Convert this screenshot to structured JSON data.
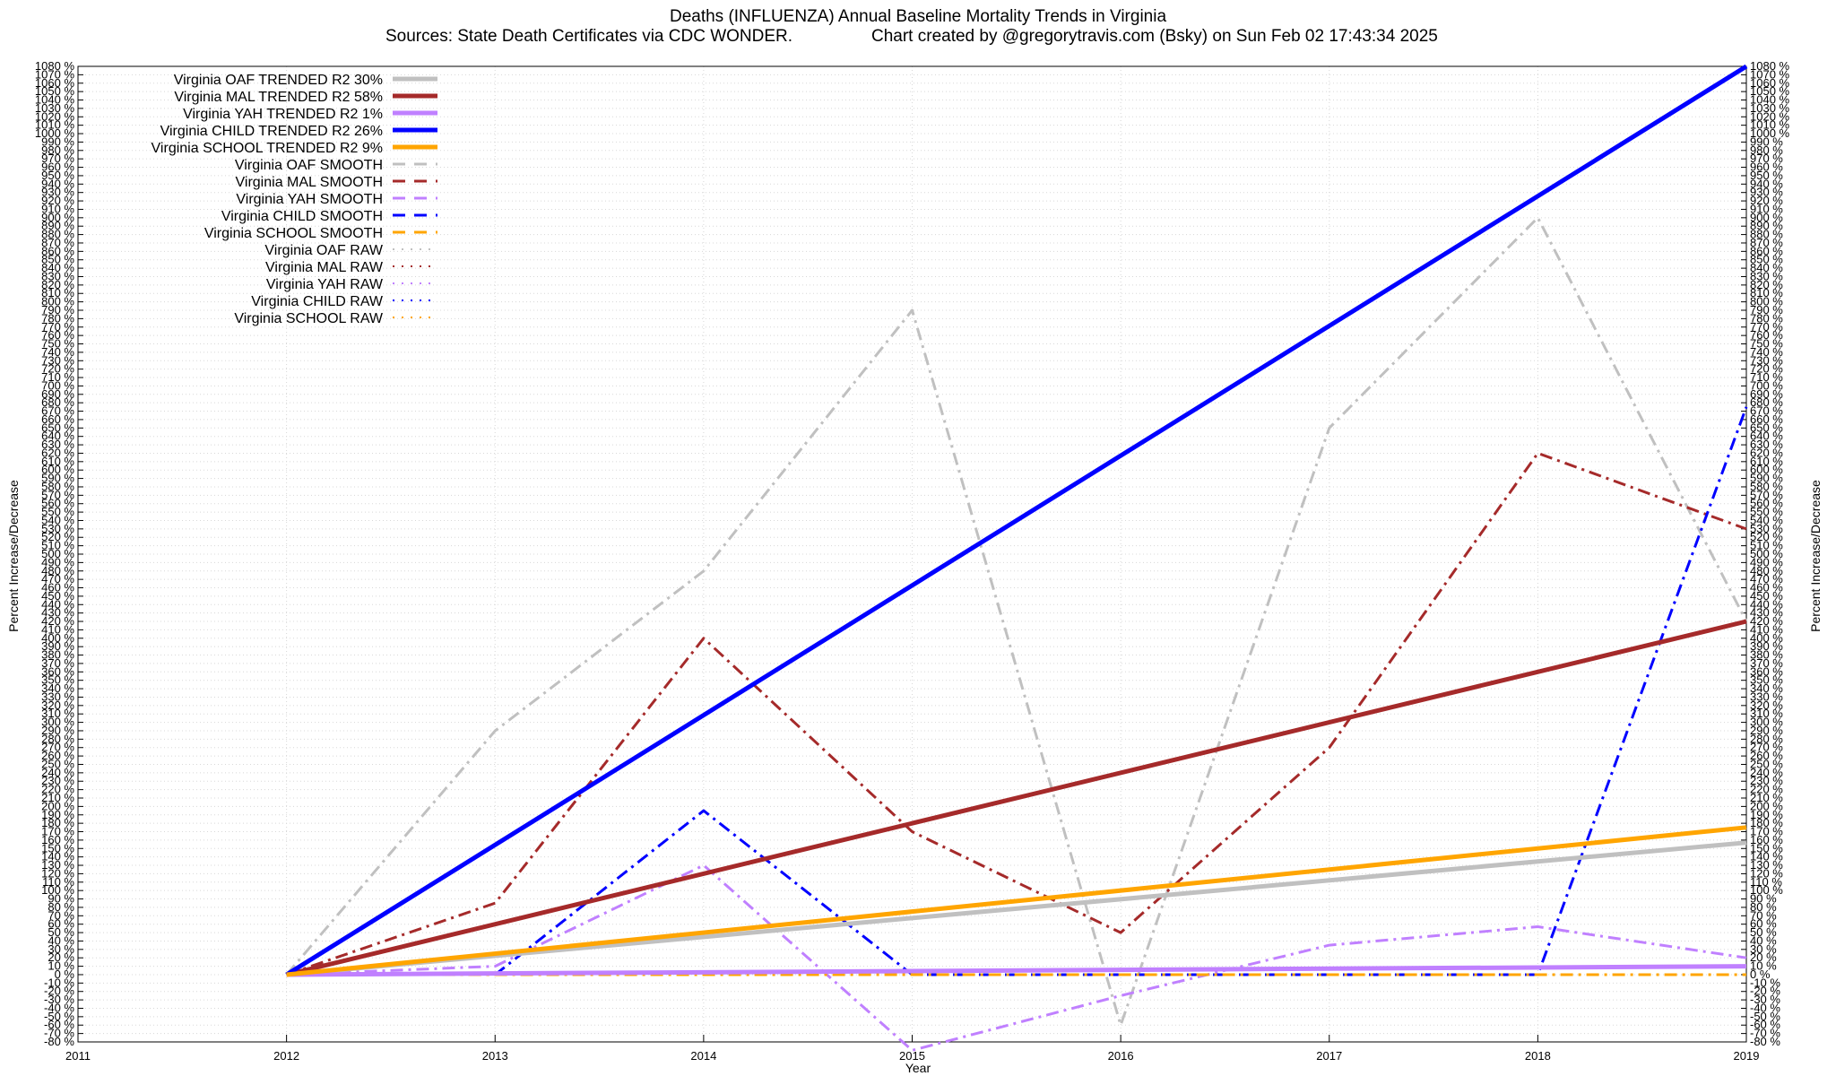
{
  "chart_data": {
    "type": "line",
    "title": "Deaths (INFLUENZA)  Annual Baseline Mortality Trends in Virginia",
    "subtitle_left": "Sources: State Death Certificates via CDC WONDER.",
    "subtitle_right": "Chart created by @gregorytravis.com (Bsky) on Sun Feb 02 17:43:34 2025",
    "xlabel": "Year",
    "ylabel": "Percent Increase/Decrease",
    "xlim": [
      2011,
      2019
    ],
    "ylim": [
      -80,
      1080
    ],
    "ytick_step": 10,
    "ytick_suffix": " %",
    "x_ticks": [
      2011,
      2012,
      2013,
      2014,
      2015,
      2016,
      2017,
      2018,
      2019
    ],
    "grid": true,
    "legend_position": "top-left",
    "series": [
      {
        "name": "Virginia OAF TRENDED R2  30%",
        "kind": "trend",
        "color": "#c0c0c0",
        "x": [
          2012,
          2019
        ],
        "y": [
          0,
          157
        ]
      },
      {
        "name": "Virginia MAL TRENDED R2  58%",
        "kind": "trend",
        "color": "#a52a2a",
        "x": [
          2012,
          2019
        ],
        "y": [
          0,
          420
        ]
      },
      {
        "name": "Virginia YAH TRENDED R2   1%",
        "kind": "trend",
        "color": "#c080ff",
        "x": [
          2012,
          2019
        ],
        "y": [
          0,
          10
        ]
      },
      {
        "name": "Virginia CHILD TRENDED R2  26%",
        "kind": "trend",
        "color": "#0000ff",
        "x": [
          2012,
          2019
        ],
        "y": [
          0,
          1080
        ]
      },
      {
        "name": "Virginia SCHOOL TRENDED R2  9%",
        "kind": "trend",
        "color": "#ffa500",
        "x": [
          2012,
          2019
        ],
        "y": [
          0,
          175
        ]
      },
      {
        "name": "Virginia OAF SMOOTH",
        "kind": "smooth",
        "color": "#c0c0c0",
        "x": [
          2012,
          2013,
          2014,
          2015,
          2016,
          2017,
          2018,
          2019
        ],
        "y": [
          0,
          290,
          480,
          790,
          -60,
          650,
          900,
          420
        ]
      },
      {
        "name": "Virginia MAL SMOOTH",
        "kind": "smooth",
        "color": "#a52a2a",
        "x": [
          2012,
          2013,
          2014,
          2015,
          2016,
          2017,
          2018,
          2019
        ],
        "y": [
          0,
          85,
          400,
          170,
          50,
          270,
          620,
          530
        ]
      },
      {
        "name": "Virginia YAH SMOOTH",
        "kind": "smooth",
        "color": "#c080ff",
        "x": [
          2012,
          2013,
          2014,
          2015,
          2016,
          2017,
          2018,
          2019
        ],
        "y": [
          0,
          10,
          130,
          -90,
          -25,
          35,
          57,
          20
        ]
      },
      {
        "name": "Virginia CHILD SMOOTH",
        "kind": "smooth",
        "color": "#0000ff",
        "x": [
          2012,
          2013,
          2014,
          2015,
          2016,
          2017,
          2018,
          2019
        ],
        "y": [
          0,
          0,
          195,
          0,
          0,
          0,
          0,
          675
        ]
      },
      {
        "name": "Virginia SCHOOL SMOOTH",
        "kind": "smooth",
        "color": "#ffa500",
        "x": [
          2012,
          2013,
          2014,
          2015,
          2016,
          2017,
          2018,
          2019
        ],
        "y": [
          0,
          0,
          0,
          0,
          0,
          0,
          0,
          0
        ]
      },
      {
        "name": "Virginia OAF RAW",
        "kind": "raw",
        "color": "#c0c0c0",
        "x": [],
        "y": []
      },
      {
        "name": "Virginia MAL RAW",
        "kind": "raw",
        "color": "#a52a2a",
        "x": [],
        "y": []
      },
      {
        "name": "Virginia YAH RAW",
        "kind": "raw",
        "color": "#c080ff",
        "x": [],
        "y": []
      },
      {
        "name": "Virginia CHILD RAW",
        "kind": "raw",
        "color": "#0000ff",
        "x": [],
        "y": []
      },
      {
        "name": "Virginia SCHOOL RAW",
        "kind": "raw",
        "color": "#ffa500",
        "x": [],
        "y": []
      }
    ]
  }
}
